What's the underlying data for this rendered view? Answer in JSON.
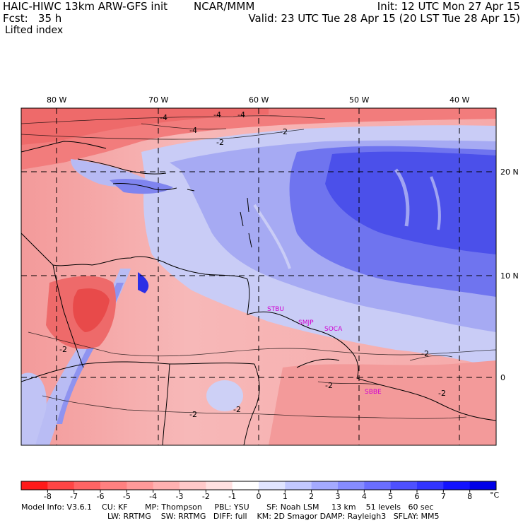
{
  "header": {
    "model": "HAIC-HIWC 13km ARW-GFS init",
    "center": "NCAR/MMM",
    "init": "Init: 12 UTC Mon 27 Apr 15",
    "fcst": "Fcst:   35 h",
    "valid": "Valid: 23 UTC Tue 28 Apr 15 (20 LST Tue 28 Apr 15)",
    "field": "Lifted index"
  },
  "map": {
    "lon_labels": [
      "80 W",
      "70 W",
      "60 W",
      "50 W",
      "40 W"
    ],
    "lat_labels": [
      "20 N",
      "10 N",
      "0"
    ],
    "stations": [
      "STBU",
      "SMJP",
      "SOCA",
      "SBBE"
    ],
    "contour_labels": [
      "-4",
      "-4",
      "-4",
      "-4",
      "-2",
      "-2",
      "-2",
      "-2",
      "-2",
      "-2",
      "-2",
      "-2"
    ]
  },
  "colorbar": {
    "ticks": [
      "-8",
      "-7",
      "-6",
      "-5",
      "-4",
      "-3",
      "-2",
      "-1",
      "0",
      "1",
      "2",
      "3",
      "4",
      "5",
      "6",
      "7",
      "8"
    ],
    "unit": "°C",
    "colors": [
      "#ff1a1a",
      "#ff4545",
      "#ff6464",
      "#ff8080",
      "#ff9999",
      "#ffb1b1",
      "#ffc9c9",
      "#ffe0e0",
      "#ffffff",
      "#e0e4ff",
      "#c2c8ff",
      "#a4aaff",
      "#868cff",
      "#6a6eff",
      "#4e50ff",
      "#3234ff",
      "#1212ff",
      "#0000e8"
    ]
  },
  "footer": {
    "line1": "Model Info: V3.6.1    CU: KF       MP: Thompson     PBL: YSU       SF: Noah LSM     13 km    51 levels   60 sec",
    "line2": "LW: RRTMG    SW: RRTMG   DIFF: full    KM: 2D Smagor DAMP: Rayleigh3   SFLAY: MM5"
  }
}
